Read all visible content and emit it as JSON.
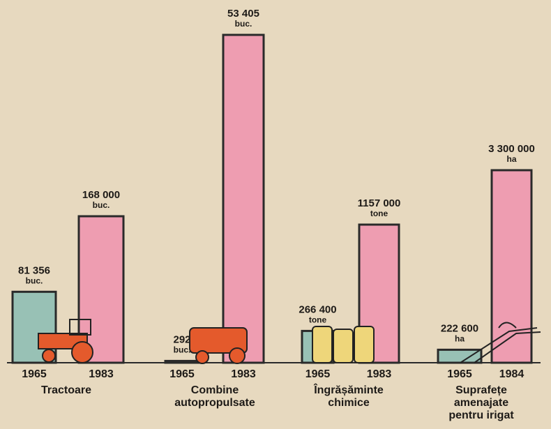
{
  "chart_data": [
    {
      "type": "bar",
      "title": [
        "Tractoare"
      ],
      "categories": [
        "1965",
        "1983"
      ],
      "values": [
        81356,
        168000
      ],
      "value_labels": [
        "81 356",
        "168 000"
      ],
      "units": [
        "buc.",
        "buc."
      ],
      "colors": [
        "#98c1b5",
        "#ee9db1"
      ]
    },
    {
      "type": "bar",
      "title": [
        "Combine",
        "autopropulsate"
      ],
      "categories": [
        "1965",
        "1983"
      ],
      "values": [
        292,
        53405
      ],
      "value_labels": [
        "292",
        "53 405"
      ],
      "units": [
        "buc.",
        "buc."
      ],
      "colors": [
        "#98c1b5",
        "#ee9db1"
      ]
    },
    {
      "type": "bar",
      "title": [
        "Îngrășăminte",
        "chimice"
      ],
      "categories": [
        "1965",
        "1983"
      ],
      "values": [
        266400,
        1157000
      ],
      "value_labels": [
        "266 400",
        "1157 000"
      ],
      "units": [
        "tone",
        "tone"
      ],
      "colors": [
        "#98c1b5",
        "#ee9db1"
      ]
    },
    {
      "type": "bar",
      "title": [
        "Suprafețe",
        "amenajate",
        "pentru irigat"
      ],
      "categories": [
        "1965",
        "1984"
      ],
      "values": [
        222600,
        3300000
      ],
      "value_labels": [
        "222 600",
        "3 300 000"
      ],
      "units": [
        "ha",
        "ha"
      ],
      "colors": [
        "#98c1b5",
        "#ee9db1"
      ]
    }
  ]
}
